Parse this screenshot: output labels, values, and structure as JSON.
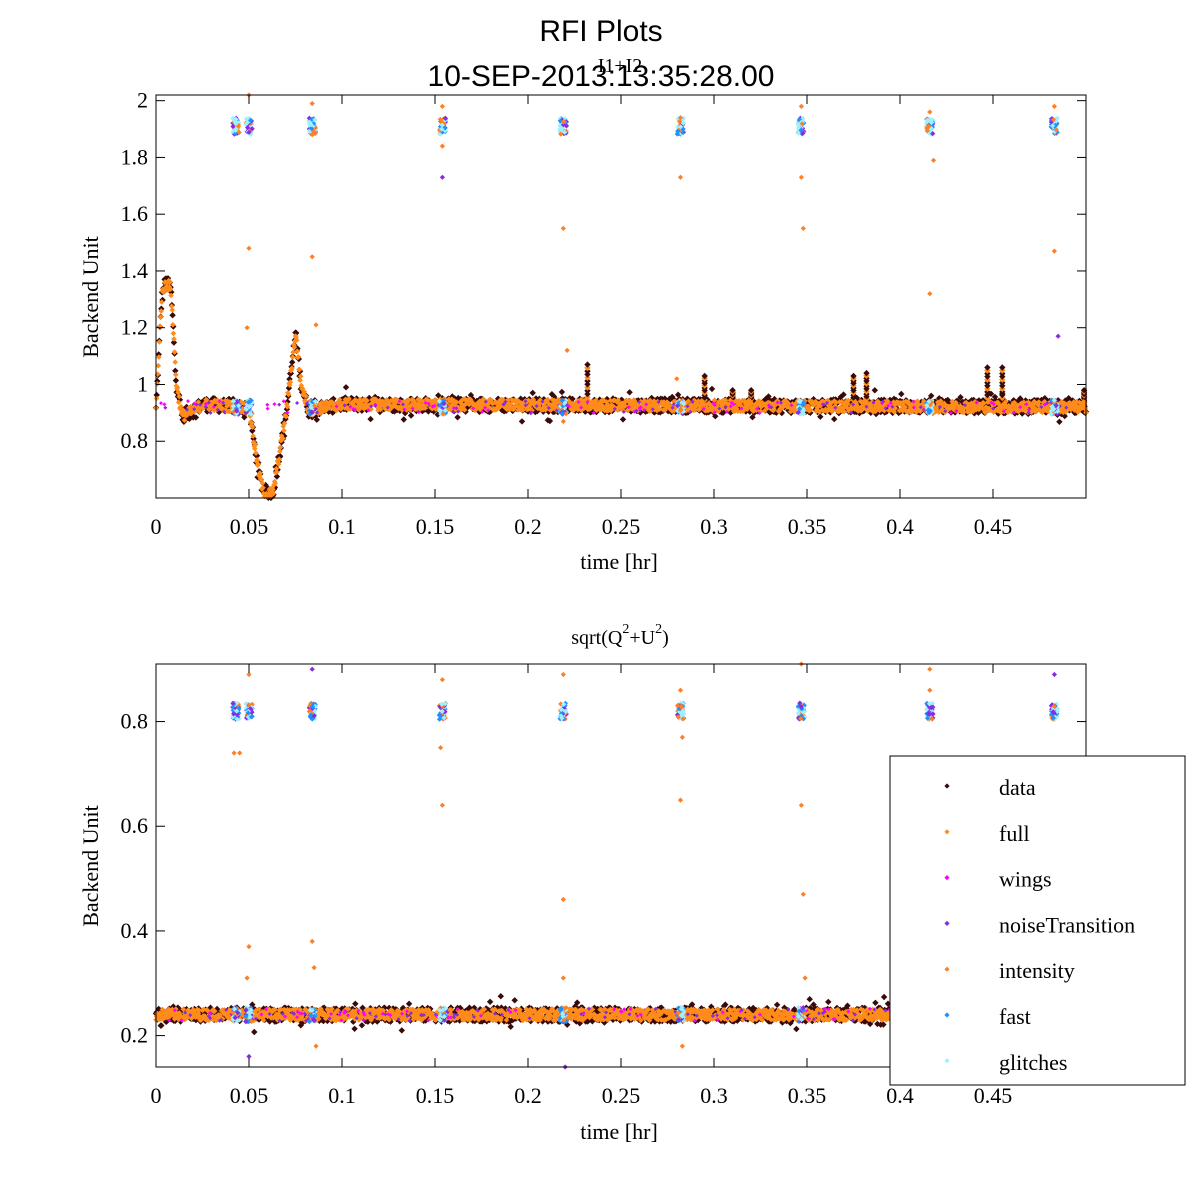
{
  "figure": {
    "title": "RFI Plots",
    "subtitle": "10-SEP-2013:13:35:28.00"
  },
  "colors": {
    "data": "#3a0a0a",
    "full": "#ff8c1a",
    "wings": "#ff00ff",
    "noiseTransition": "#8a2be2",
    "intensity": "#ff7f24",
    "fast": "#1e90ff",
    "glitches": "#9ff0ff"
  },
  "legend": {
    "entries": [
      "data",
      "full",
      "wings",
      "noiseTransition",
      "intensity",
      "fast",
      "glitches"
    ],
    "placement": "lower-right"
  },
  "chart_data": [
    {
      "type": "scatter",
      "title": "I1+I2",
      "xlabel": "time [hr]",
      "ylabel": "Backend Unit",
      "xlim": [
        0,
        0.5
      ],
      "ylim": [
        0.6,
        2.02
      ],
      "xticks": [
        0,
        0.05,
        0.1,
        0.15,
        0.2,
        0.25,
        0.3,
        0.35,
        0.4,
        0.45
      ],
      "xtick_labels": [
        "0",
        "0.05",
        "0.1",
        "0.15",
        "0.2",
        "0.25",
        "0.3",
        "0.35",
        "0.4",
        "0.45"
      ],
      "yticks": [
        0.8,
        1.0,
        1.2,
        1.4,
        1.6,
        1.8,
        2.0
      ],
      "ytick_labels": [
        "0.8",
        "1",
        "1.2",
        "1.4",
        "1.6",
        "1.8",
        "2"
      ],
      "baseline": 0.92,
      "cal_times": [
        0.043,
        0.05,
        0.084,
        0.154,
        0.219,
        0.282,
        0.347,
        0.416,
        0.483
      ],
      "cal_level": 1.91,
      "profile": [
        [
          0,
          0.91
        ],
        [
          0.003,
          1.3
        ],
        [
          0.005,
          1.36
        ],
        [
          0.008,
          1.34
        ],
        [
          0.011,
          1.0
        ],
        [
          0.014,
          0.89
        ],
        [
          0.018,
          0.9
        ],
        [
          0.025,
          0.93
        ],
        [
          0.05,
          0.92
        ],
        [
          0.055,
          0.7
        ],
        [
          0.058,
          0.61
        ],
        [
          0.063,
          0.62
        ],
        [
          0.07,
          0.9
        ],
        [
          0.075,
          1.18
        ],
        [
          0.078,
          1.0
        ],
        [
          0.082,
          0.91
        ],
        [
          0.1,
          0.93
        ],
        [
          0.5,
          0.92
        ]
      ],
      "spikes": [
        [
          0.232,
          1.07
        ],
        [
          0.295,
          1.03
        ],
        [
          0.31,
          0.98
        ],
        [
          0.32,
          0.98
        ],
        [
          0.375,
          1.03
        ],
        [
          0.382,
          1.04
        ],
        [
          0.447,
          1.06
        ],
        [
          0.455,
          1.06
        ],
        [
          0.499,
          0.98
        ]
      ],
      "outliers": [
        [
          0.05,
          2.02
        ],
        [
          0.05,
          1.48
        ],
        [
          0.049,
          1.2
        ],
        [
          0.084,
          1.99
        ],
        [
          0.084,
          1.88
        ],
        [
          0.084,
          1.45
        ],
        [
          0.086,
          1.21
        ],
        [
          0.154,
          1.98
        ],
        [
          0.154,
          1.73
        ],
        [
          0.154,
          1.84
        ],
        [
          0.219,
          1.55
        ],
        [
          0.221,
          1.12
        ],
        [
          0.219,
          0.87
        ],
        [
          0.282,
          1.94
        ],
        [
          0.282,
          1.73
        ],
        [
          0.28,
          1.02
        ],
        [
          0.347,
          1.98
        ],
        [
          0.347,
          1.73
        ],
        [
          0.348,
          1.55
        ],
        [
          0.416,
          1.96
        ],
        [
          0.416,
          1.32
        ],
        [
          0.418,
          1.79
        ],
        [
          0.483,
          1.98
        ],
        [
          0.483,
          1.47
        ],
        [
          0.485,
          1.17
        ]
      ]
    },
    {
      "type": "scatter",
      "title_parts": [
        "sqrt(Q",
        "2",
        "+U",
        "2",
        ")"
      ],
      "xlabel": "time [hr]",
      "ylabel": "Backend Unit",
      "xlim": [
        0,
        0.5
      ],
      "ylim": [
        0.14,
        0.91
      ],
      "xticks": [
        0,
        0.05,
        0.1,
        0.15,
        0.2,
        0.25,
        0.3,
        0.35,
        0.4,
        0.45
      ],
      "xtick_labels": [
        "0",
        "0.05",
        "0.1",
        "0.15",
        "0.2",
        "0.25",
        "0.3",
        "0.35",
        "0.4",
        "0.45"
      ],
      "yticks": [
        0.2,
        0.4,
        0.6,
        0.8
      ],
      "ytick_labels": [
        "0.2",
        "0.4",
        "0.6",
        "0.8"
      ],
      "baseline": 0.24,
      "cal_times": [
        0.043,
        0.05,
        0.084,
        0.154,
        0.219,
        0.282,
        0.347,
        0.416,
        0.483
      ],
      "cal_level": 0.82,
      "outliers": [
        [
          0.05,
          0.89
        ],
        [
          0.05,
          0.37
        ],
        [
          0.049,
          0.31
        ],
        [
          0.05,
          0.16
        ],
        [
          0.042,
          0.74
        ],
        [
          0.045,
          0.74
        ],
        [
          0.084,
          0.9
        ],
        [
          0.084,
          0.38
        ],
        [
          0.085,
          0.33
        ],
        [
          0.086,
          0.18
        ],
        [
          0.154,
          0.88
        ],
        [
          0.154,
          0.64
        ],
        [
          0.153,
          0.75
        ],
        [
          0.219,
          0.89
        ],
        [
          0.219,
          0.46
        ],
        [
          0.219,
          0.31
        ],
        [
          0.22,
          0.14
        ],
        [
          0.282,
          0.86
        ],
        [
          0.282,
          0.65
        ],
        [
          0.283,
          0.77
        ],
        [
          0.283,
          0.18
        ],
        [
          0.347,
          0.91
        ],
        [
          0.347,
          0.64
        ],
        [
          0.348,
          0.47
        ],
        [
          0.349,
          0.31
        ],
        [
          0.416,
          0.9
        ],
        [
          0.416,
          0.86
        ],
        [
          0.483,
          0.89
        ]
      ]
    }
  ]
}
